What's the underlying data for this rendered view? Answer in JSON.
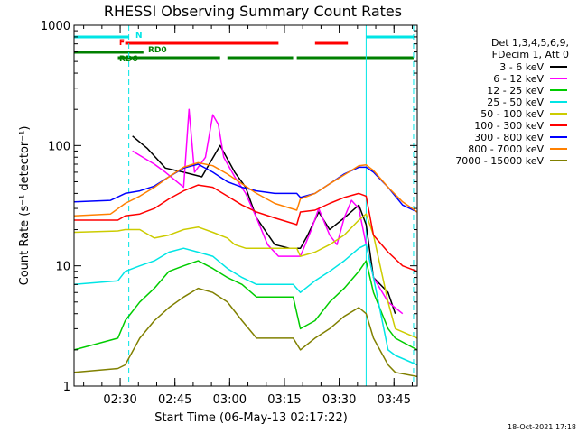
{
  "chart_data": {
    "type": "line",
    "title": "RHESSI Observing Summary Count Rates",
    "xlabel": "Start Time (06-May-13 02:17:22)",
    "ylabel": "Count Rate (s⁻¹ detector⁻¹)",
    "y_log_scale": true,
    "ylim": [
      1,
      1000
    ],
    "y_tick_labels": [
      "1",
      "10",
      "100",
      "1000"
    ],
    "x_unit": "minutes after 02:17:22",
    "xlim": [
      0,
      94
    ],
    "x_tick_values": [
      12.63,
      27.63,
      42.63,
      57.63,
      72.63,
      87.63
    ],
    "x_tick_labels": [
      "02:30",
      "02:45",
      "03:00",
      "03:15",
      "03:30",
      "03:45"
    ],
    "legend_title": [
      "Det 1,3,4,5,6,9,",
      "FDecim 1, Att 0"
    ],
    "legend_placement": "right",
    "series": [
      {
        "name": "3 - 6 keV",
        "color": "#000000",
        "x": [
          0,
          14.5,
          16,
          20,
          25,
          30,
          35,
          40,
          44,
          47,
          50,
          55,
          59,
          62,
          64,
          67,
          70,
          74,
          78,
          80,
          82,
          86,
          88,
          94
        ],
        "values": [
          null,
          null,
          120,
          95,
          65,
          60,
          55,
          100,
          60,
          45,
          25,
          15,
          14,
          14,
          18,
          28,
          20,
          25,
          32,
          22,
          8,
          6,
          4,
          null
        ]
      },
      {
        "name": "6 - 12 keV",
        "color": "#ff00ff",
        "x": [
          0,
          14.5,
          16,
          22,
          25,
          30,
          31.5,
          33,
          36,
          38,
          39.5,
          41,
          44,
          47,
          50,
          53,
          56,
          59,
          62,
          65,
          67,
          70,
          72,
          74,
          76,
          78,
          80,
          82,
          86,
          90,
          94
        ],
        "values": [
          null,
          null,
          90,
          70,
          60,
          45,
          200,
          60,
          80,
          180,
          150,
          80,
          55,
          40,
          25,
          15,
          12,
          12,
          12,
          20,
          30,
          18,
          15,
          25,
          35,
          30,
          15,
          8,
          5,
          4,
          null
        ]
      },
      {
        "name": "12 - 25 keV",
        "color": "#00cc00",
        "x": [
          0,
          12,
          14,
          18,
          22,
          26,
          30,
          34,
          38,
          42,
          46,
          50,
          55,
          60,
          62,
          66,
          70,
          74,
          78,
          80,
          82,
          86,
          88,
          94
        ],
        "values": [
          2,
          2.5,
          3.5,
          5,
          6.5,
          9,
          10,
          11,
          9.5,
          8,
          7,
          5.5,
          5.5,
          5.5,
          3,
          3.5,
          5,
          6.5,
          9,
          11,
          6,
          3,
          2.5,
          2
        ]
      },
      {
        "name": "25 - 50 keV",
        "color": "#00e5e5",
        "x": [
          0,
          12,
          14,
          18,
          22,
          26,
          30,
          34,
          38,
          42,
          46,
          50,
          55,
          60,
          62,
          66,
          70,
          74,
          78,
          80,
          82,
          86,
          88,
          94
        ],
        "values": [
          7,
          7.5,
          9,
          10,
          11,
          13,
          14,
          13,
          12,
          9.5,
          8,
          7,
          7,
          7,
          6,
          7.5,
          9,
          11,
          14,
          15,
          8,
          2,
          1.8,
          1.5
        ]
      },
      {
        "name": "50 - 100 keV",
        "color": "#cccc00",
        "x": [
          0,
          12,
          14,
          18,
          22,
          26,
          30,
          34,
          38,
          42,
          44,
          47,
          52,
          58,
          61,
          62,
          66,
          70,
          74,
          78,
          80,
          82,
          86,
          88,
          94
        ],
        "values": [
          19,
          19.5,
          20,
          20,
          17,
          18,
          20,
          21,
          19,
          17,
          15,
          14,
          14,
          14,
          14,
          12,
          13,
          15,
          18,
          24,
          27,
          18,
          5,
          3,
          2.5
        ]
      },
      {
        "name": "100 - 300 keV",
        "color": "#ff0000",
        "x": [
          0,
          12,
          14,
          18,
          22,
          26,
          30,
          34,
          38,
          42,
          46,
          50,
          55,
          61,
          62,
          66,
          70,
          74,
          78,
          80,
          82,
          86,
          90,
          94
        ],
        "values": [
          24,
          24,
          26,
          27,
          30,
          36,
          42,
          47,
          45,
          38,
          32,
          28,
          25,
          22,
          28,
          29,
          33,
          37,
          40,
          38,
          18,
          13,
          10,
          9
        ]
      },
      {
        "name": "300 - 800 keV",
        "color": "#0000ff",
        "x": [
          0,
          10,
          14,
          18,
          22,
          26,
          30,
          34,
          38,
          42,
          46,
          50,
          55,
          61,
          62,
          66,
          70,
          74,
          78,
          80,
          82,
          86,
          90,
          94
        ],
        "values": [
          34,
          35,
          40,
          42,
          46,
          55,
          65,
          70,
          60,
          50,
          45,
          42,
          40,
          40,
          37,
          40,
          48,
          58,
          66,
          66,
          60,
          45,
          32,
          28
        ]
      },
      {
        "name": "800 - 7000 keV",
        "color": "#ff8000",
        "x": [
          0,
          10,
          14,
          18,
          22,
          26,
          30,
          34,
          38,
          42,
          46,
          50,
          55,
          61,
          62,
          66,
          70,
          74,
          78,
          80,
          82,
          86,
          90,
          94
        ],
        "values": [
          26,
          27,
          33,
          38,
          45,
          55,
          66,
          72,
          68,
          58,
          48,
          40,
          33,
          29,
          36,
          40,
          48,
          57,
          68,
          69,
          62,
          45,
          34,
          28
        ]
      },
      {
        "name": "7000 - 15000 keV",
        "color": "#808000",
        "x": [
          0,
          12,
          14,
          18,
          22,
          26,
          30,
          34,
          38,
          42,
          46,
          50,
          55,
          60,
          62,
          66,
          70,
          74,
          78,
          80,
          82,
          86,
          88,
          94
        ],
        "values": [
          1.3,
          1.4,
          1.5,
          2.5,
          3.5,
          4.5,
          5.5,
          6.5,
          6,
          5,
          3.5,
          2.5,
          2.5,
          2.5,
          2,
          2.5,
          3,
          3.8,
          4.5,
          4,
          2.5,
          1.5,
          1.3,
          1.2
        ]
      }
    ],
    "flags": [
      {
        "label": "N",
        "color": "#00e5e5",
        "row": 1,
        "intervals": [
          [
            0,
            15
          ],
          [
            80,
            93
          ]
        ]
      },
      {
        "label": "F",
        "color": "#ff0000",
        "row": 2,
        "intervals": [
          [
            14,
            56
          ],
          [
            66,
            75
          ]
        ]
      },
      {
        "label": "RD0",
        "color": "#008000",
        "row": 3,
        "intervals": [
          [
            0,
            19
          ]
        ]
      },
      {
        "label": "RD6",
        "color": "#008000",
        "row": 4,
        "intervals": [
          [
            12,
            40
          ],
          [
            42,
            60
          ],
          [
            61,
            93
          ]
        ]
      }
    ],
    "vertical_markers": [
      {
        "x": 15,
        "color": "#00e5e5",
        "style": "dashed"
      },
      {
        "x": 80,
        "color": "#00e5e5",
        "style": "solid"
      },
      {
        "x": 93,
        "color": "#00e5e5",
        "style": "dashed"
      }
    ]
  },
  "timestamp": "18-Oct-2021 17:18"
}
